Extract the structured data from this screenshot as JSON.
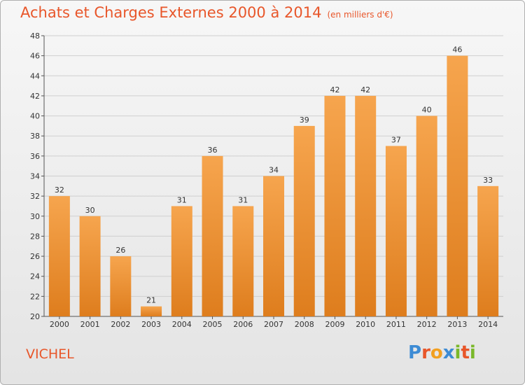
{
  "title": "Achats et Charges Externes 2000 à 2014",
  "subtitle": "(en milliers d'€)",
  "commune": "VICHEL",
  "brand": {
    "text": "Proxiti",
    "letter_colors": [
      "#3d8bd4",
      "#e8562a",
      "#f2a020",
      "#3d8bd4",
      "#7ab82a",
      "#e8562a",
      "#7ab82a"
    ]
  },
  "colors": {
    "bar_top": "#f6a54e",
    "bar_bottom": "#de7d1d",
    "title": "#e8562a"
  },
  "chart_data": {
    "type": "bar",
    "categories": [
      "2000",
      "2001",
      "2002",
      "2003",
      "2004",
      "2005",
      "2006",
      "2007",
      "2008",
      "2009",
      "2010",
      "2011",
      "2012",
      "2013",
      "2014"
    ],
    "values": [
      32,
      30,
      26,
      21,
      31,
      36,
      31,
      34,
      39,
      42,
      42,
      37,
      40,
      46,
      33
    ],
    "ylim": [
      20,
      48
    ],
    "yticks": [
      20,
      22,
      24,
      26,
      28,
      30,
      32,
      34,
      36,
      38,
      40,
      42,
      44,
      46,
      48
    ],
    "grid": true,
    "data_labels": true,
    "title": "Achats et Charges Externes 2000 à 2014",
    "xlabel": "",
    "ylabel": ""
  }
}
